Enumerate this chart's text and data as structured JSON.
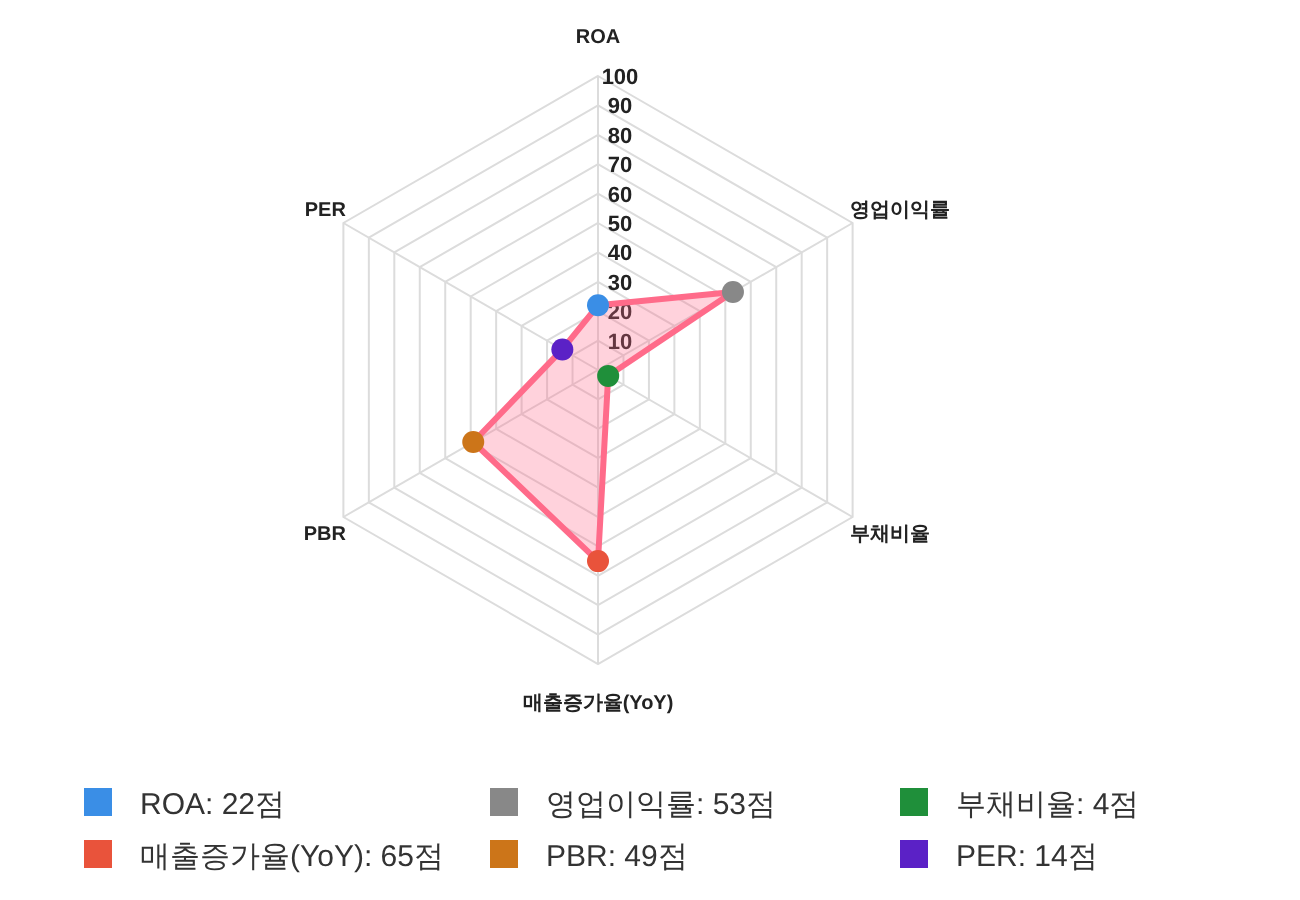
{
  "chart_data": {
    "type": "radar",
    "categories": [
      "ROA",
      "영업이익률",
      "부채비율",
      "매출증가율(YoY)",
      "PBR",
      "PER"
    ],
    "series": [
      {
        "color": "#ff6b8a",
        "values": [
          22,
          53,
          4,
          65,
          49,
          14
        ],
        "colors": [
          "#3a8ee6",
          "#888888",
          "#1f8f3a",
          "#e9533b",
          "#cc7519",
          "#5b21c6"
        ]
      }
    ],
    "annotations": [
      "ROA: 22점",
      "영업이익률: 53점",
      "부채비율: 4점",
      "매출증가율(YoY): 65점",
      "PBR: 49점",
      "PER: 14점"
    ],
    "ylim": [
      0,
      100
    ],
    "yticks": [
      10,
      20,
      30,
      40,
      50,
      60,
      70,
      80,
      90,
      100
    ],
    "grid": true,
    "marker": "circle"
  }
}
